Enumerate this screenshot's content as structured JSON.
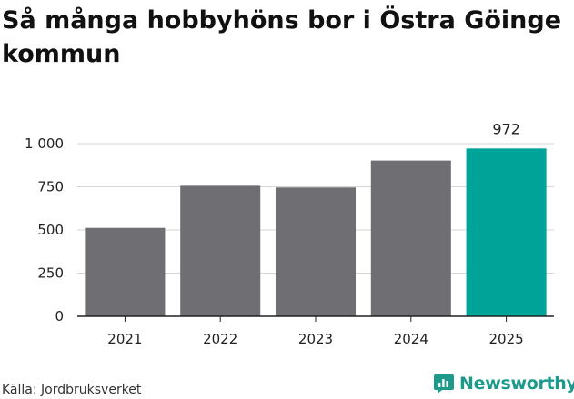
{
  "title": "Så många hobbyhöns bor i Östra Göinge kommun",
  "source": "Källa: Jordbruksverket",
  "logo": {
    "text": "Newsworthy",
    "icon": "newsworthy-chart-icon",
    "color": "#1c9a8c"
  },
  "colors": {
    "bar": "#6f6e73",
    "highlight": "#00a398",
    "grid": "#d6d6d6",
    "axis": "#222222"
  },
  "chart_data": {
    "type": "bar",
    "categories": [
      "2021",
      "2022",
      "2023",
      "2024",
      "2025"
    ],
    "values": [
      512,
      756,
      746,
      902,
      972
    ],
    "highlight_index": 4,
    "data_labels": [
      {
        "index": 4,
        "text": "972"
      }
    ],
    "ylim": [
      0,
      1000
    ],
    "yticks": [
      0,
      250,
      500,
      750,
      1000
    ],
    "ytick_labels": [
      "0",
      "250",
      "500",
      "750",
      "1 000"
    ],
    "title": "Så många hobbyhöns bor i Östra Göinge kommun",
    "xlabel": "",
    "ylabel": "",
    "grid": true,
    "legend": "none"
  }
}
